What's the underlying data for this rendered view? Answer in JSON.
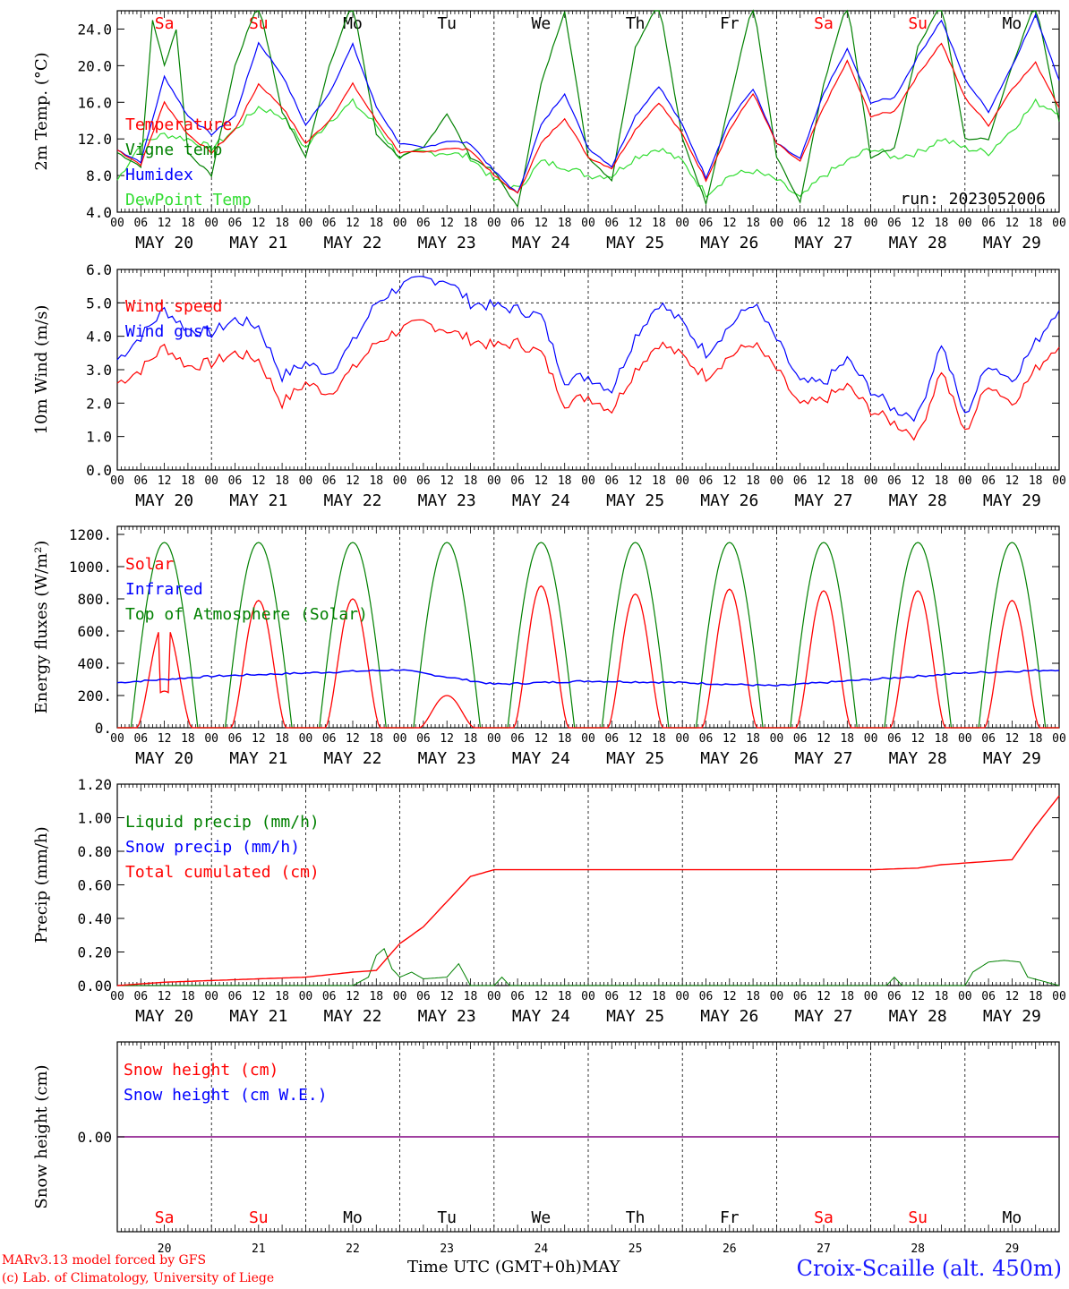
{
  "days": {
    "dow": [
      "Sa",
      "Su",
      "Mo",
      "Tu",
      "We",
      "Th",
      "Fr",
      "Sa",
      "Su",
      "Mo"
    ],
    "weekend": [
      true,
      true,
      false,
      false,
      false,
      false,
      false,
      true,
      true,
      false
    ],
    "dates": [
      "MAY 20",
      "MAY 21",
      "MAY 22",
      "MAY 23",
      "MAY 24",
      "MAY 25",
      "MAY 26",
      "MAY 27",
      "MAY 28",
      "MAY 29"
    ],
    "bottom_nums": [
      "20",
      "21",
      "22",
      "23",
      "24",
      "25",
      "26",
      "27",
      "28",
      "29"
    ],
    "hour_labels": [
      "00",
      "06",
      "12",
      "18"
    ],
    "final_hour_label": "00"
  },
  "colors": {
    "red": "#ff0000",
    "green": "#008000",
    "blue": "#0000ff",
    "light_green": "#33dd33",
    "purple": "#800080"
  },
  "footer": {
    "left_line1": "MARv3.13 model forced by GFS",
    "left_line2": "(c) Lab. of Climatology, University of Liege",
    "x_axis_label": "Time UTC (GMT+0h)",
    "month": "MAY",
    "station": "Croix-Scaille (alt. 450m)"
  },
  "chart_data": [
    {
      "type": "line",
      "ylabel": "2m Temp. (°C)",
      "ylim": [
        4,
        26
      ],
      "ticks": [
        4.0,
        8.0,
        12.0,
        16.0,
        20.0,
        24.0
      ],
      "tick_labels": [
        "4.0",
        "8.0",
        "12.0",
        "16.0",
        "20.0",
        "24.0"
      ],
      "annotation": "run: 2023052006",
      "legend": [
        "Temperature",
        "Vigne temp",
        "Humidex",
        "DewPoint Temp"
      ],
      "series": [
        {
          "name": "Temperature",
          "color": "red",
          "hours": [
            0,
            6,
            12,
            18,
            24,
            30,
            36,
            42,
            48,
            54,
            60,
            66,
            72,
            78,
            84,
            90,
            96,
            102,
            108,
            114,
            120,
            126,
            132,
            138,
            144,
            150,
            156,
            162,
            168,
            174,
            180,
            186,
            192,
            198,
            204,
            210,
            216,
            222,
            228,
            234,
            240
          ],
          "values": [
            10.8,
            9.2,
            16.0,
            12.5,
            10.5,
            13.0,
            18.0,
            15.5,
            11.5,
            14.0,
            18.0,
            14.0,
            10.5,
            10.5,
            11.0,
            10.8,
            8.0,
            6.0,
            11.5,
            14.3,
            10.0,
            8.8,
            13.0,
            16.0,
            12.5,
            7.5,
            13.0,
            17.0,
            11.5,
            9.5,
            15.5,
            20.5,
            14.5,
            15.0,
            19.0,
            22.5,
            16.5,
            13.5,
            17.5,
            20.3,
            15.5
          ]
        },
        {
          "name": "Vigne temp",
          "color": "green",
          "hours": [
            0,
            6,
            9,
            12,
            15,
            18,
            24,
            30,
            36,
            42,
            48,
            54,
            60,
            66,
            72,
            78,
            84,
            90,
            96,
            102,
            108,
            114,
            120,
            126,
            132,
            138,
            144,
            150,
            156,
            162,
            168,
            174,
            180,
            186,
            192,
            198,
            204,
            210,
            216,
            222,
            228,
            234,
            240
          ],
          "values": [
            10.5,
            9.0,
            25.0,
            20.0,
            24.0,
            10.5,
            8.0,
            20.0,
            27.0,
            15.0,
            10.0,
            20.0,
            27.0,
            12.5,
            10.0,
            11.0,
            14.8,
            10.0,
            8.5,
            4.5,
            18.0,
            26.0,
            10.0,
            7.5,
            22.0,
            27.0,
            12.0,
            5.0,
            16.0,
            27.0,
            10.0,
            5.0,
            18.0,
            27.0,
            10.0,
            11.0,
            22.0,
            27.0,
            12.0,
            12.0,
            20.0,
            27.0,
            14.0
          ]
        },
        {
          "name": "Humidex",
          "color": "blue",
          "hours": [
            0,
            6,
            12,
            18,
            24,
            30,
            36,
            42,
            48,
            54,
            60,
            66,
            72,
            78,
            84,
            90,
            96,
            102,
            108,
            114,
            120,
            126,
            132,
            138,
            144,
            150,
            156,
            162,
            168,
            174,
            180,
            186,
            192,
            198,
            204,
            210,
            216,
            222,
            228,
            234,
            240
          ],
          "values": [
            10.8,
            9.5,
            18.8,
            14.5,
            12.5,
            14.5,
            22.5,
            19.0,
            13.5,
            17.0,
            22.3,
            15.5,
            11.5,
            11.0,
            11.8,
            11.5,
            8.5,
            6.0,
            13.5,
            17.0,
            11.0,
            9.0,
            14.5,
            17.8,
            13.5,
            7.8,
            14.0,
            17.5,
            11.5,
            9.8,
            17.0,
            21.8,
            16.0,
            16.5,
            21.0,
            25.0,
            18.5,
            15.0,
            20.0,
            25.5,
            18.5
          ]
        },
        {
          "name": "DewPoint Temp",
          "color": "light_green",
          "hours": [
            0,
            6,
            12,
            18,
            24,
            30,
            36,
            42,
            48,
            54,
            60,
            66,
            72,
            78,
            84,
            90,
            96,
            102,
            108,
            114,
            120,
            126,
            132,
            138,
            144,
            150,
            156,
            162,
            168,
            174,
            180,
            186,
            192,
            198,
            204,
            210,
            216,
            222,
            228,
            234,
            240
          ],
          "values": [
            7.5,
            11.5,
            12.5,
            12.0,
            11.0,
            13.0,
            15.5,
            14.5,
            11.0,
            14.0,
            16.0,
            13.5,
            10.0,
            10.5,
            10.5,
            10.0,
            7.5,
            6.5,
            9.5,
            9.0,
            8.0,
            8.0,
            10.0,
            11.0,
            9.5,
            6.0,
            8.0,
            8.5,
            7.5,
            5.5,
            8.0,
            9.5,
            11.0,
            10.0,
            10.5,
            12.0,
            11.0,
            10.5,
            13.0,
            16.0,
            15.0
          ]
        }
      ]
    },
    {
      "type": "line",
      "ylabel": "10m Wind (m/s)",
      "ylim": [
        0,
        6
      ],
      "ticks": [
        0,
        1,
        2,
        3,
        4,
        5,
        6
      ],
      "tick_labels": [
        "0.0",
        "1.0",
        "2.0",
        "3.0",
        "4.0",
        "5.0",
        "6.0"
      ],
      "ref_line": 5.0,
      "legend": [
        "Wind speed",
        "Wind gust"
      ],
      "series": [
        {
          "name": "Wind speed",
          "color": "red",
          "hours": [
            0,
            6,
            12,
            18,
            24,
            30,
            36,
            42,
            48,
            54,
            60,
            66,
            72,
            78,
            84,
            90,
            96,
            102,
            108,
            114,
            120,
            126,
            132,
            138,
            144,
            150,
            156,
            162,
            168,
            174,
            180,
            186,
            192,
            198,
            204,
            210,
            216,
            222,
            228,
            234,
            240
          ],
          "values": [
            2.6,
            3.0,
            3.7,
            3.1,
            3.2,
            3.5,
            3.3,
            2.0,
            2.6,
            2.3,
            3.0,
            3.8,
            4.2,
            4.4,
            4.2,
            3.9,
            3.7,
            3.8,
            3.5,
            2.0,
            2.2,
            1.8,
            3.0,
            3.8,
            3.4,
            2.8,
            3.4,
            3.8,
            3.0,
            1.9,
            2.1,
            2.5,
            1.8,
            1.4,
            1.0,
            3.0,
            1.1,
            2.6,
            2.0,
            3.0,
            3.8
          ]
        },
        {
          "name": "Wind gust",
          "color": "blue",
          "hours": [
            0,
            6,
            12,
            18,
            24,
            30,
            36,
            42,
            48,
            54,
            60,
            66,
            72,
            78,
            84,
            90,
            96,
            102,
            108,
            114,
            120,
            126,
            132,
            138,
            144,
            150,
            156,
            162,
            168,
            174,
            180,
            186,
            192,
            198,
            204,
            210,
            216,
            222,
            228,
            234,
            240
          ],
          "values": [
            3.3,
            4.0,
            4.8,
            4.2,
            4.1,
            4.5,
            4.3,
            2.8,
            3.2,
            2.9,
            3.8,
            5.0,
            5.5,
            5.7,
            5.7,
            5.0,
            4.9,
            4.8,
            4.6,
            2.7,
            2.8,
            2.4,
            4.0,
            5.0,
            4.4,
            3.5,
            4.3,
            5.0,
            3.9,
            2.6,
            2.6,
            3.3,
            2.4,
            1.8,
            1.6,
            3.8,
            1.6,
            3.2,
            2.7,
            3.8,
            4.9
          ]
        }
      ]
    },
    {
      "type": "line",
      "ylabel": "Energy fluxes (W/m²)",
      "ylim": [
        0,
        1250
      ],
      "ticks": [
        0,
        200,
        400,
        600,
        800,
        1000,
        1200
      ],
      "tick_labels": [
        "0.",
        "200.",
        "400.",
        "600.",
        "800.",
        "1000.",
        "1200."
      ],
      "legend": [
        "Solar",
        "Infrared",
        "Top of Atmosphere (Solar)"
      ],
      "series": [
        {
          "name": "Solar",
          "color": "red",
          "peaks": [
            650,
            790,
            800,
            200,
            880,
            830,
            860,
            850,
            850,
            790
          ]
        },
        {
          "name": "Infrared",
          "color": "blue",
          "hours": [
            0,
            24,
            48,
            72,
            96,
            120,
            144,
            168,
            192,
            216,
            240
          ],
          "values": [
            280,
            320,
            340,
            360,
            270,
            290,
            280,
            260,
            300,
            340,
            360
          ]
        },
        {
          "name": "Top of Atmosphere (Solar)",
          "color": "green",
          "peak": 1150,
          "sunrise_h": 3.5,
          "sunset_h": 20.5
        }
      ]
    },
    {
      "type": "line",
      "ylabel": "Precip (mm/h)",
      "ylim": [
        0,
        1.2
      ],
      "ticks": [
        0,
        0.2,
        0.4,
        0.6,
        0.8,
        1.0,
        1.2
      ],
      "tick_labels": [
        "0.00",
        "0.20",
        "0.40",
        "0.60",
        "0.80",
        "1.00",
        "1.20"
      ],
      "legend": [
        "Liquid precip (mm/h)",
        "Snow precip (mm/h)",
        "Total cumulated (cm)"
      ],
      "series": [
        {
          "name": "Total cumulated (cm)",
          "color": "red",
          "hours": [
            0,
            12,
            24,
            36,
            48,
            60,
            66,
            72,
            78,
            84,
            90,
            96,
            120,
            144,
            168,
            192,
            204,
            210,
            228,
            234,
            240
          ],
          "values": [
            0,
            0.02,
            0.03,
            0.04,
            0.05,
            0.08,
            0.09,
            0.25,
            0.35,
            0.5,
            0.65,
            0.69,
            0.69,
            0.69,
            0.69,
            0.69,
            0.7,
            0.72,
            0.75,
            0.95,
            1.13
          ]
        },
        {
          "name": "Liquid precip (mm/h)",
          "color": "green",
          "hours": [
            0,
            60,
            64,
            66,
            68,
            70,
            72,
            75,
            78,
            84,
            87,
            90,
            96,
            98,
            100,
            196,
            198,
            200,
            216,
            218,
            222,
            226,
            230,
            232,
            240
          ],
          "values": [
            0,
            0,
            0.05,
            0.18,
            0.22,
            0.1,
            0.05,
            0.08,
            0.04,
            0.05,
            0.13,
            0,
            0,
            0.05,
            0,
            0,
            0.05,
            0,
            0,
            0.08,
            0.14,
            0.15,
            0.14,
            0.05,
            0
          ]
        }
      ]
    },
    {
      "type": "line",
      "ylabel": "Snow height (cm)",
      "zero_label": "0.00",
      "legend": [
        "Snow height (cm)",
        "Snow height (cm W.E.)"
      ],
      "series": [
        {
          "name": "Snow height (cm)",
          "color": "red",
          "values": [
            0
          ]
        },
        {
          "name": "Snow height (cm W.E.)",
          "color": "blue",
          "values": [
            0
          ]
        }
      ]
    }
  ]
}
